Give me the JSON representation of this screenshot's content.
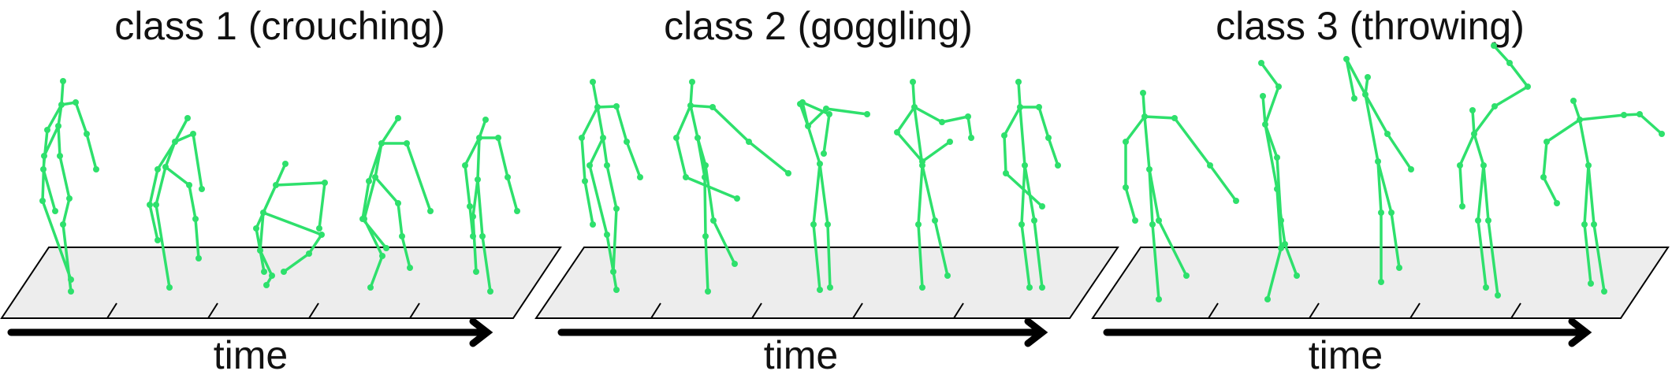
{
  "figure": {
    "panels": [
      {
        "title": "class 1 (crouching)",
        "axis_label": "time"
      },
      {
        "title": "class 2 (goggling)",
        "axis_label": "time"
      },
      {
        "title": "class 3 (throwing)",
        "axis_label": "time"
      }
    ],
    "colors": {
      "skeleton": "#2ee06c",
      "floor": "#ededed",
      "ink": "#000000"
    }
  }
}
